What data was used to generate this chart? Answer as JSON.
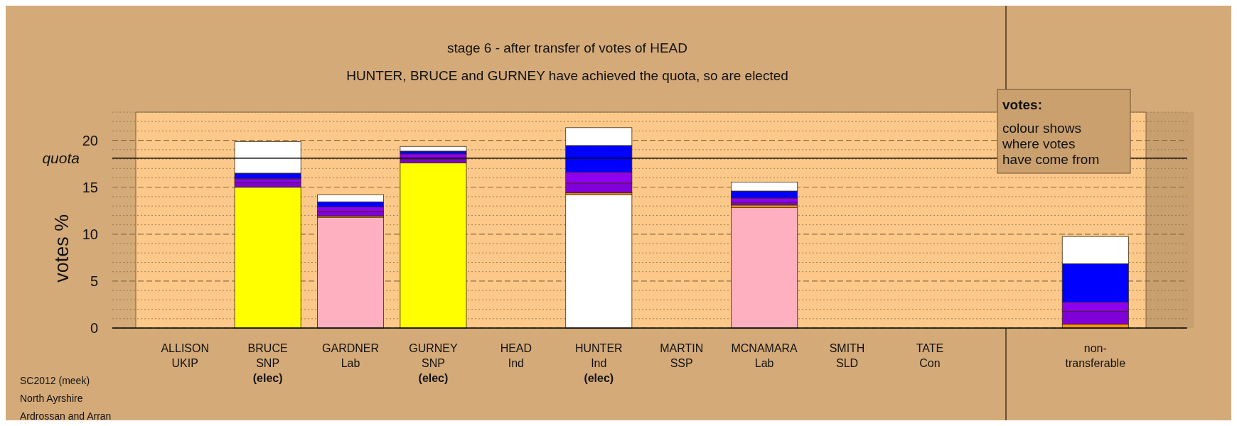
{
  "chart_data": {
    "type": "bar",
    "stacked": true,
    "title": "stage 6 - after transfer of votes of HEAD",
    "subtitle": "HUNTER, BRUCE and GURNEY have achieved the quota, so are elected",
    "ylabel": "votes %",
    "categories": [
      "ALLISON\nUKIP",
      "BRUCE\nSNP\n(elec)",
      "GARDNER\nLab",
      "GURNEY\nSNP\n(elec)",
      "HEAD\nInd",
      "HUNTER\nInd\n(elec)",
      "MARTIN\nSSP",
      "MCNAMARA\nLab",
      "SMITH\nSLD",
      "TATE\nCon",
      null,
      "non-\ntransferable"
    ],
    "series": [
      {
        "color": "#ffff00",
        "values": [
          null,
          15.0,
          null,
          17.6,
          null,
          null,
          null,
          null,
          null,
          null,
          null,
          null
        ]
      },
      {
        "color": "#ffb0c0",
        "values": [
          null,
          null,
          11.8,
          null,
          null,
          null,
          null,
          12.85,
          null,
          null,
          null,
          null
        ]
      },
      {
        "color": "#ffffff",
        "values": [
          null,
          null,
          null,
          null,
          null,
          14.2,
          null,
          null,
          null,
          null,
          null,
          null
        ]
      },
      {
        "color": "#ff9900",
        "values": [
          null,
          null,
          0.15,
          null,
          null,
          0.2,
          null,
          0.25,
          null,
          null,
          null,
          0.4
        ]
      },
      {
        "color": "#8000d8",
        "values": [
          null,
          0.55,
          0.5,
          0.35,
          null,
          1.05,
          null,
          0.25,
          null,
          null,
          null,
          1.4
        ]
      },
      {
        "color": "#8f00f0",
        "values": [
          null,
          0.35,
          0.45,
          0.6,
          null,
          1.15,
          null,
          0.5,
          null,
          null,
          null,
          0.95
        ]
      },
      {
        "color": "#0000ff",
        "values": [
          null,
          0.6,
          0.55,
          0.3,
          null,
          2.85,
          null,
          0.75,
          null,
          null,
          null,
          4.1
        ]
      },
      {
        "color": "#ffffff",
        "values": [
          null,
          3.35,
          0.75,
          0.5,
          null,
          1.9,
          null,
          0.95,
          null,
          null,
          null,
          2.9
        ]
      }
    ],
    "ylim": [
      0,
      23
    ],
    "yticks": [
      0,
      {
        "value": 1,
        "label": null
      },
      {
        "value": 2,
        "label": null
      },
      {
        "value": 3,
        "label": null
      },
      {
        "value": 4,
        "label": null
      },
      5,
      {
        "value": 6,
        "label": null
      },
      {
        "value": 7,
        "label": null
      },
      {
        "value": 8,
        "label": null
      },
      {
        "value": 9,
        "label": null
      },
      10,
      {
        "value": 11,
        "label": null
      },
      {
        "value": 12,
        "label": null
      },
      {
        "value": 13,
        "label": null
      },
      {
        "value": 14,
        "label": null
      },
      15,
      {
        "value": 16,
        "label": null
      },
      {
        "value": 17,
        "label": null
      },
      {
        "value": 18,
        "label": null
      },
      {
        "value": 19,
        "label": null
      },
      20,
      {
        "value": 21,
        "label": null
      },
      {
        "value": 22,
        "label": null
      },
      {
        "value": 23,
        "label": null
      }
    ],
    "grid": "y",
    "ref_lines": [
      {
        "axis": "y",
        "value": 18.1,
        "label": "quota",
        "color": "#000000"
      }
    ],
    "annotations": [
      "votes:",
      "colour shows\nwhere votes\nhave come from",
      "SC2012 (meek)",
      "North Ayrshire",
      "Ardrossan and Arran"
    ]
  }
}
